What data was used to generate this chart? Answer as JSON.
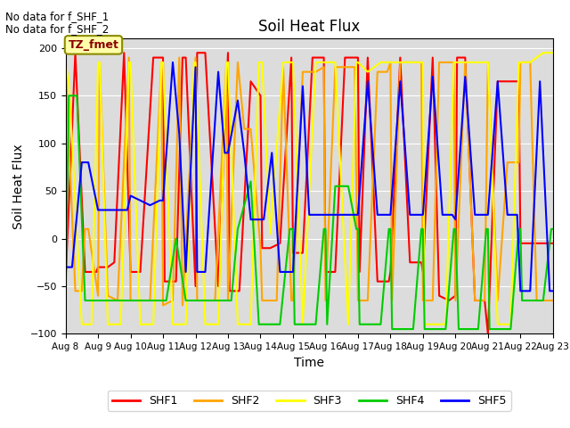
{
  "title": "Soil Heat Flux",
  "xlabel": "Time",
  "ylabel": "Soil Heat Flux",
  "ylim": [
    -100,
    210
  ],
  "yticks": [
    -100,
    -50,
    0,
    50,
    100,
    150,
    200
  ],
  "background_color": "#dcdcdc",
  "fig_background": "#ffffff",
  "top_text": [
    "No data for f_SHF_1",
    "No data for f_SHF_2"
  ],
  "legend_label": "TZ_fmet",
  "legend_box_color": "#ffffaa",
  "legend_box_edge": "#8B8B00",
  "series_order": [
    "SHF1",
    "SHF2",
    "SHF3",
    "SHF4",
    "SHF5"
  ],
  "series": {
    "SHF1": {
      "color": "#ff0000",
      "x": [
        8.0,
        8.3,
        8.6,
        8.95,
        9.0,
        9.3,
        9.5,
        9.8,
        10.0,
        10.3,
        10.7,
        11.0,
        11.05,
        11.4,
        11.6,
        11.7,
        12.0,
        12.05,
        12.3,
        12.7,
        13.0,
        13.05,
        13.35,
        13.7,
        14.0,
        14.05,
        14.3,
        14.6,
        14.95,
        15.0,
        15.3,
        15.6,
        15.95,
        16.0,
        16.3,
        16.6,
        17.0,
        17.05,
        17.3,
        17.6,
        17.95,
        18.0,
        18.3,
        18.6,
        18.95,
        19.0,
        19.3,
        19.5,
        19.8,
        20.0,
        20.05,
        20.3,
        20.6,
        20.9,
        21.0,
        21.3,
        21.6,
        21.95,
        22.0,
        22.3,
        22.6,
        23.0
      ],
      "y": [
        -45,
        195,
        -35,
        -35,
        -30,
        -30,
        -25,
        195,
        -35,
        -35,
        190,
        190,
        -45,
        -45,
        190,
        190,
        -50,
        195,
        195,
        -50,
        195,
        -55,
        -55,
        165,
        150,
        -10,
        -10,
        -5,
        190,
        -15,
        -15,
        190,
        190,
        -35,
        -35,
        190,
        190,
        -35,
        190,
        -45,
        -45,
        -35,
        190,
        -25,
        -25,
        -35,
        190,
        -60,
        -65,
        -60,
        190,
        190,
        -65,
        -65,
        -100,
        165,
        165,
        165,
        -5,
        -5,
        -5,
        -5
      ]
    },
    "SHF2": {
      "color": "#ffa500",
      "x": [
        8.0,
        8.3,
        8.5,
        8.6,
        8.7,
        9.0,
        9.05,
        9.3,
        9.6,
        9.95,
        10.0,
        10.3,
        10.6,
        10.95,
        11.0,
        11.3,
        11.5,
        11.6,
        12.0,
        12.05,
        12.3,
        12.6,
        12.95,
        13.0,
        13.3,
        13.5,
        13.7,
        14.0,
        14.05,
        14.3,
        14.5,
        14.7,
        14.95,
        15.0,
        15.3,
        15.5,
        15.7,
        15.95,
        16.0,
        16.3,
        16.6,
        16.9,
        17.0,
        17.3,
        17.6,
        17.9,
        18.0,
        18.05,
        18.3,
        18.6,
        18.95,
        19.0,
        19.3,
        19.5,
        19.7,
        19.95,
        20.0,
        20.3,
        20.6,
        20.9,
        21.0,
        21.3,
        21.6,
        21.95,
        22.0,
        22.3,
        22.5,
        22.7,
        23.0
      ],
      "y": [
        185,
        -55,
        -55,
        10,
        10,
        -60,
        185,
        -60,
        -65,
        190,
        -65,
        -65,
        -65,
        185,
        -70,
        -65,
        190,
        -70,
        190,
        -65,
        -65,
        -65,
        185,
        -65,
        185,
        115,
        115,
        -10,
        -65,
        -65,
        -65,
        180,
        -65,
        -65,
        175,
        175,
        175,
        180,
        -65,
        180,
        180,
        180,
        -65,
        -65,
        175,
        175,
        185,
        -65,
        185,
        185,
        185,
        -65,
        -65,
        185,
        185,
        185,
        -65,
        185,
        -65,
        -65,
        185,
        -65,
        80,
        80,
        185,
        185,
        -65,
        -65,
        -65
      ]
    },
    "SHF3": {
      "color": "#ffff00",
      "x": [
        8.0,
        8.1,
        8.5,
        8.8,
        9.0,
        9.05,
        9.3,
        9.7,
        9.95,
        10.0,
        10.3,
        10.7,
        10.95,
        11.0,
        11.3,
        11.7,
        11.95,
        12.0,
        12.3,
        12.7,
        12.95,
        13.0,
        13.3,
        13.7,
        13.95,
        14.0,
        14.05,
        14.3,
        14.7,
        14.95,
        15.0,
        15.3,
        15.7,
        15.95,
        16.0,
        16.3,
        16.7,
        16.95,
        17.0,
        17.3,
        17.7,
        17.95,
        18.0,
        18.3,
        18.7,
        18.95,
        19.0,
        19.05,
        19.3,
        19.7,
        19.95,
        20.0,
        20.3,
        20.7,
        20.95,
        21.0,
        21.3,
        21.7,
        21.95,
        22.0,
        22.3,
        22.7,
        22.95,
        23.0
      ],
      "y": [
        185,
        165,
        -90,
        -90,
        185,
        185,
        -90,
        -90,
        185,
        185,
        -90,
        -90,
        185,
        185,
        -90,
        -90,
        185,
        185,
        -90,
        -90,
        185,
        185,
        -90,
        -90,
        185,
        185,
        185,
        5,
        185,
        185,
        185,
        -90,
        185,
        185,
        185,
        185,
        -90,
        185,
        185,
        175,
        185,
        185,
        185,
        185,
        185,
        185,
        185,
        -90,
        -90,
        -90,
        185,
        185,
        185,
        185,
        185,
        185,
        -90,
        -90,
        185,
        185,
        185,
        195,
        195,
        195
      ]
    },
    "SHF4": {
      "color": "#00cc00",
      "x": [
        8.0,
        8.1,
        8.35,
        8.6,
        8.9,
        9.0,
        9.1,
        9.3,
        9.7,
        9.95,
        10.0,
        10.1,
        10.3,
        10.7,
        10.95,
        11.0,
        11.1,
        11.4,
        11.7,
        11.95,
        12.0,
        12.1,
        12.3,
        12.7,
        12.95,
        13.0,
        13.1,
        13.3,
        13.7,
        13.95,
        14.0,
        14.1,
        14.35,
        14.6,
        14.9,
        15.0,
        15.05,
        15.3,
        15.7,
        15.95,
        16.0,
        16.05,
        16.3,
        16.7,
        16.95,
        17.0,
        17.05,
        17.3,
        17.7,
        17.95,
        18.0,
        18.05,
        18.3,
        18.7,
        18.95,
        19.0,
        19.05,
        19.3,
        19.5,
        19.7,
        19.95,
        20.0,
        20.1,
        20.3,
        20.7,
        20.95,
        21.0,
        21.05,
        21.3,
        21.7,
        21.95,
        22.0,
        22.05,
        22.3,
        22.7,
        22.95,
        23.0
      ],
      "y": [
        -65,
        150,
        150,
        -65,
        -65,
        -65,
        -65,
        -65,
        -65,
        -65,
        -65,
        -65,
        -65,
        -65,
        -65,
        -65,
        -65,
        0,
        -65,
        -65,
        -65,
        -65,
        -65,
        -65,
        -65,
        -65,
        -65,
        10,
        60,
        -90,
        -90,
        -90,
        -90,
        -90,
        10,
        10,
        -90,
        -90,
        -90,
        10,
        10,
        -90,
        55,
        55,
        10,
        10,
        -90,
        -90,
        -90,
        10,
        10,
        -95,
        -95,
        -95,
        10,
        10,
        -95,
        -95,
        -95,
        -95,
        10,
        10,
        -95,
        -95,
        -95,
        10,
        10,
        -95,
        -95,
        -95,
        10,
        10,
        -65,
        -65,
        -65,
        10,
        10
      ]
    },
    "SHF5": {
      "color": "#0000ff",
      "x": [
        8.0,
        8.2,
        8.5,
        8.7,
        9.0,
        9.05,
        9.3,
        9.6,
        9.9,
        10.0,
        10.3,
        10.6,
        10.9,
        11.0,
        11.3,
        11.5,
        11.7,
        12.0,
        12.05,
        12.3,
        12.7,
        12.9,
        13.0,
        13.3,
        13.5,
        13.7,
        14.0,
        14.1,
        14.35,
        14.6,
        14.9,
        15.0,
        15.3,
        15.5,
        15.7,
        15.9,
        16.0,
        16.3,
        16.6,
        16.9,
        17.0,
        17.3,
        17.6,
        17.9,
        18.0,
        18.3,
        18.6,
        18.9,
        19.0,
        19.3,
        19.6,
        19.9,
        20.0,
        20.3,
        20.6,
        20.9,
        21.0,
        21.3,
        21.6,
        21.9,
        22.0,
        22.3,
        22.6,
        22.9,
        23.0
      ],
      "y": [
        -30,
        -30,
        80,
        80,
        30,
        30,
        30,
        30,
        30,
        45,
        40,
        35,
        40,
        40,
        185,
        110,
        -35,
        180,
        -35,
        -35,
        175,
        90,
        90,
        145,
        90,
        20,
        20,
        20,
        90,
        -35,
        -35,
        -35,
        160,
        25,
        25,
        25,
        25,
        25,
        25,
        25,
        25,
        165,
        25,
        25,
        25,
        165,
        25,
        25,
        25,
        170,
        25,
        25,
        20,
        170,
        25,
        25,
        25,
        165,
        25,
        25,
        -55,
        -55,
        165,
        -55,
        -55
      ]
    }
  },
  "xtick_positions": [
    8,
    9,
    10,
    11,
    12,
    13,
    14,
    15,
    16,
    17,
    18,
    19,
    20,
    21,
    22,
    23
  ],
  "xtick_labels": [
    "Aug 8",
    "Aug 9",
    "Aug 10",
    "Aug 11",
    "Aug 12",
    "Aug 13",
    "Aug 14",
    "Aug 15",
    "Aug 16",
    "Aug 17",
    "Aug 18",
    "Aug 19",
    "Aug 20",
    "Aug 21",
    "Aug 22",
    "Aug 23"
  ],
  "legend_entries": [
    "SHF1",
    "SHF2",
    "SHF3",
    "SHF4",
    "SHF5"
  ],
  "legend_colors": [
    "#ff0000",
    "#ffa500",
    "#ffff00",
    "#00cc00",
    "#0000ff"
  ]
}
